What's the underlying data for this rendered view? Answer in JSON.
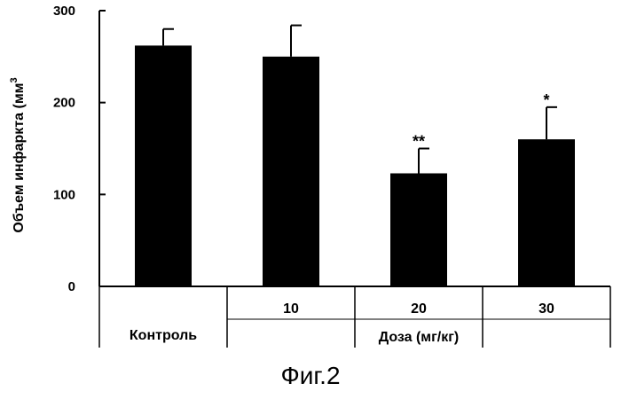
{
  "chart_data": {
    "type": "bar",
    "categories": [
      "Контроль",
      "10",
      "20",
      "30"
    ],
    "values": [
      262,
      250,
      123,
      160
    ],
    "errors": [
      18,
      34,
      27,
      35
    ],
    "significance": [
      "",
      "",
      "**",
      "*"
    ],
    "ylabel": "Объем инфаркта (мм3)",
    "xlabel": "Доза (мг/кг)",
    "ylim": [
      0,
      300
    ],
    "yticks": [
      0,
      100,
      200,
      300
    ],
    "bar_color": "#000000",
    "grid": false
  },
  "caption": "Фиг.2"
}
